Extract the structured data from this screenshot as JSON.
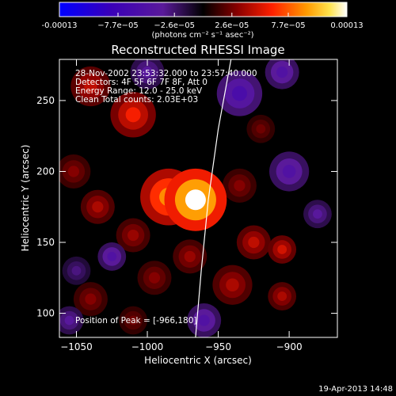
{
  "chart_data": {
    "type": "heatmap",
    "title": "Reconstructed RHESSI Image",
    "xlabel": "Heliocentric X (arcsec)",
    "ylabel": "Heliocentric Y (arcsec)",
    "xlim": [
      -1062,
      -866
    ],
    "ylim": [
      83,
      279
    ],
    "x_ticks": [
      -1050,
      -1000,
      -950,
      -900
    ],
    "y_ticks": [
      100,
      150,
      200,
      250
    ],
    "colorbar": {
      "ticks": [
        -0.00013,
        -7.7e-05,
        -2.6e-05,
        2.6e-05,
        7.7e-05,
        0.00013
      ],
      "tick_labels": [
        "-0.00013",
        "−7.7e−05",
        "−2.6e−05",
        "2.6e−05",
        "7.7e−05",
        "0.00013"
      ],
      "units": "(photons cm⁻² s⁻¹ asec⁻²)",
      "range": [
        -0.00013,
        0.00013
      ]
    },
    "annotations": [
      "28-Nov-2002 23:53:32.000 to 23:57:40.000",
      "Detectors: 4F 5F 6F 7F 8F, Att 0",
      "Energy Range: 12.0 - 25.0 keV",
      "Clean     Total counts: 2.03E+03",
      "Position of Peak = [-966,180]"
    ],
    "peak": {
      "x": -966,
      "y": 180
    },
    "limb_curve": [
      [
        -966,
        83
      ],
      [
        -962,
        130
      ],
      [
        -957,
        180
      ],
      [
        -950,
        230
      ],
      [
        -941,
        279
      ]
    ],
    "blobs": [
      {
        "x": -966,
        "y": 180,
        "r": 22,
        "v": 0.00013
      },
      {
        "x": -985,
        "y": 182,
        "r": 20,
        "v": 9e-05
      },
      {
        "x": -1010,
        "y": 240,
        "r": 16,
        "v": 6e-05
      },
      {
        "x": -1040,
        "y": 260,
        "r": 14,
        "v": 4.5e-05
      },
      {
        "x": -1052,
        "y": 200,
        "r": 12,
        "v": 3e-05
      },
      {
        "x": -1035,
        "y": 175,
        "r": 12,
        "v": 4e-05
      },
      {
        "x": -1010,
        "y": 155,
        "r": 12,
        "v": 3.5e-05
      },
      {
        "x": -995,
        "y": 125,
        "r": 12,
        "v": 3e-05
      },
      {
        "x": -970,
        "y": 140,
        "r": 12,
        "v": 3.5e-05
      },
      {
        "x": -940,
        "y": 120,
        "r": 14,
        "v": 4e-05
      },
      {
        "x": -925,
        "y": 150,
        "r": 12,
        "v": 4.5e-05
      },
      {
        "x": -905,
        "y": 145,
        "r": 10,
        "v": 5e-05
      },
      {
        "x": -905,
        "y": 112,
        "r": 10,
        "v": 4e-05
      },
      {
        "x": -935,
        "y": 190,
        "r": 12,
        "v": 3e-05
      },
      {
        "x": -920,
        "y": 230,
        "r": 10,
        "v": 2.5e-05
      },
      {
        "x": -1040,
        "y": 110,
        "r": 12,
        "v": 3e-05
      },
      {
        "x": -1010,
        "y": 95,
        "r": 10,
        "v": 2.5e-05
      },
      {
        "x": -935,
        "y": 255,
        "r": 16,
        "v": -6e-05
      },
      {
        "x": -900,
        "y": 200,
        "r": 14,
        "v": -5e-05
      },
      {
        "x": -905,
        "y": 270,
        "r": 12,
        "v": -5e-05
      },
      {
        "x": -1025,
        "y": 140,
        "r": 10,
        "v": -5e-05
      },
      {
        "x": -1000,
        "y": 270,
        "r": 12,
        "v": -4e-05
      },
      {
        "x": -960,
        "y": 95,
        "r": 12,
        "v": -5e-05
      },
      {
        "x": -1055,
        "y": 95,
        "r": 10,
        "v": -4e-05
      },
      {
        "x": -880,
        "y": 170,
        "r": 10,
        "v": -4e-05
      },
      {
        "x": -1050,
        "y": 130,
        "r": 10,
        "v": -3e-05
      }
    ]
  },
  "footer": {
    "timestamp": "19-Apr-2013 14:48"
  }
}
